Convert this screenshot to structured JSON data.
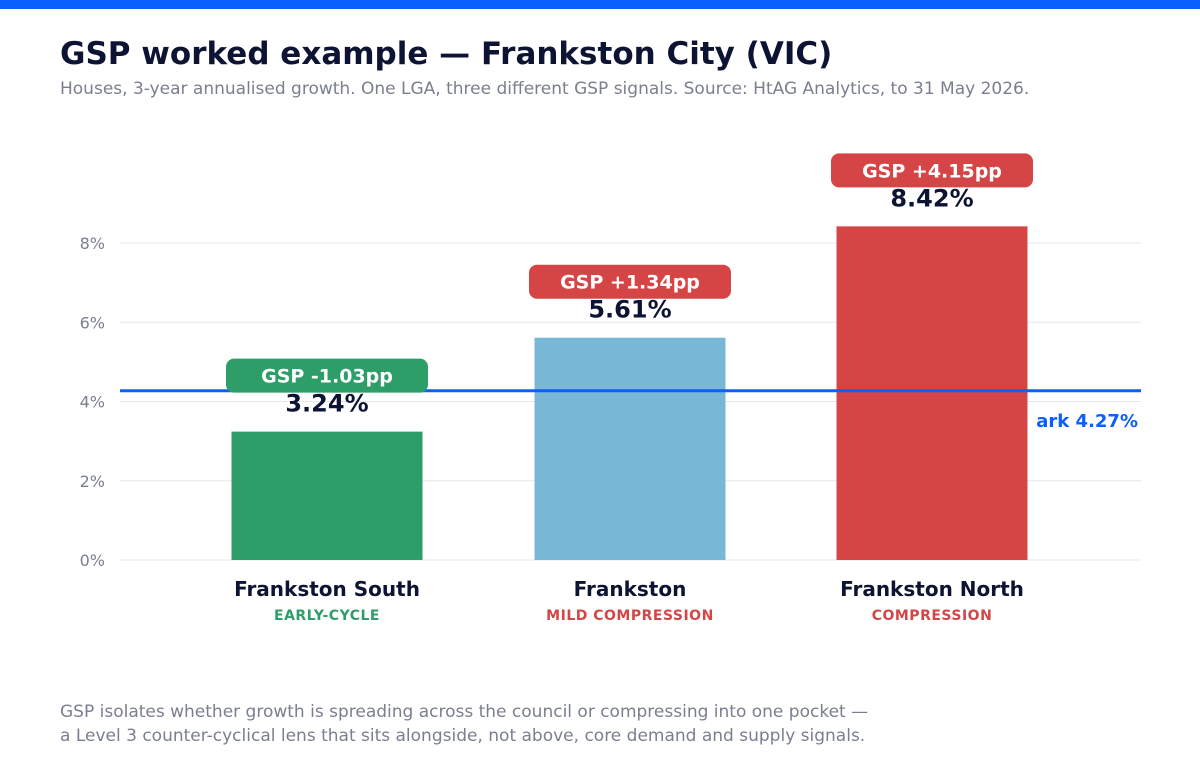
{
  "header": {
    "title": "GSP worked example — Frankston City (VIC)",
    "subtitle": "Houses, 3-year annualised growth. One LGA, three different GSP signals. Source: HtAG Analytics, to 31 May 2026."
  },
  "chart_data": {
    "type": "bar",
    "title": "GSP worked example — Frankston City (VIC)",
    "categories": [
      "Frankston South",
      "Frankston",
      "Frankston North"
    ],
    "values": [
      3.24,
      5.61,
      8.42
    ],
    "value_labels": [
      "3.24%",
      "5.61%",
      "8.42%"
    ],
    "cycle_labels": [
      "EARLY-CYCLE",
      "MILD COMPRESSION",
      "COMPRESSION"
    ],
    "gsp_labels": [
      "GSP -1.03pp",
      "GSP +1.34pp",
      "GSP +4.15pp"
    ],
    "gsp_values": [
      -1.03,
      1.34,
      4.15
    ],
    "colors": [
      "#2e9e68",
      "#78b8d6",
      "#d64545"
    ],
    "gsp_colors": [
      "#2e9e68",
      "#d64545",
      "#d64545"
    ],
    "cycle_colors": [
      "#2e9e68",
      "#d64545",
      "#d64545"
    ],
    "benchmark": {
      "value": 4.27,
      "label": "ark 4.27%",
      "color": "#0b5fff"
    },
    "ylim": [
      0,
      8.5
    ],
    "yticks": [
      0,
      2,
      4,
      6,
      8
    ],
    "ytick_labels": [
      "0%",
      "2%",
      "4%",
      "6%",
      "8%"
    ],
    "grid": true,
    "xlabel": "",
    "ylabel": ""
  },
  "footnote": {
    "line1": "GSP isolates whether growth is spreading across the council or compressing into one pocket —",
    "line2": "a Level 3 counter-cyclical lens that sits alongside, not above, core demand and supply signals."
  }
}
